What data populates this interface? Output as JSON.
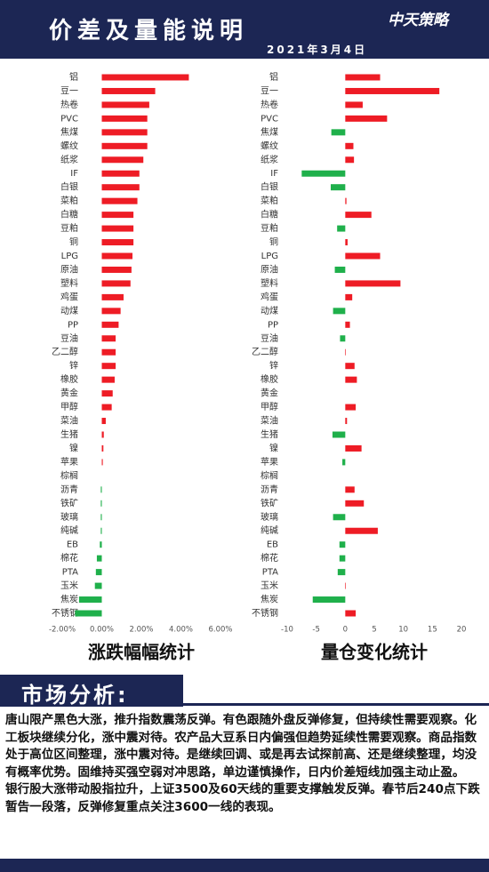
{
  "header": {
    "title": "价差及量能说明",
    "logo": "中天策略",
    "date": "2021年3月4日"
  },
  "chart_data": [
    {
      "type": "bar",
      "orientation": "horizontal",
      "caption": "涨跌幅幅统计",
      "categories": [
        "铝",
        "豆一",
        "热卷",
        "PVC",
        "焦煤",
        "螺纹",
        "纸浆",
        "IF",
        "白银",
        "菜粕",
        "白糖",
        "豆粕",
        "铜",
        "LPG",
        "原油",
        "塑料",
        "鸡蛋",
        "动煤",
        "PP",
        "豆油",
        "乙二醇",
        "锌",
        "橡胶",
        "黄金",
        "甲醇",
        "菜油",
        "生猪",
        "镍",
        "苹果",
        "棕榈",
        "沥青",
        "铁矿",
        "玻璃",
        "纯碱",
        "EB",
        "棉花",
        "PTA",
        "玉米",
        "焦炭",
        "不锈钢"
      ],
      "values": [
        4.4,
        2.7,
        2.4,
        2.3,
        2.3,
        2.3,
        2.1,
        1.9,
        1.9,
        1.8,
        1.6,
        1.6,
        1.6,
        1.55,
        1.5,
        1.45,
        1.1,
        0.95,
        0.85,
        0.7,
        0.7,
        0.7,
        0.65,
        0.55,
        0.5,
        0.2,
        0.1,
        0.08,
        0.05,
        0,
        -0.05,
        -0.05,
        -0.05,
        -0.05,
        -0.1,
        -0.25,
        -0.3,
        -0.35,
        -1.15,
        -1.35
      ],
      "positive_color": "#ee1c25",
      "negative_color": "#1fb04b",
      "xlim": [
        -2,
        6
      ],
      "xticks": [
        {
          "value": -2,
          "label": "-2.00%"
        },
        {
          "value": 0,
          "label": "0.00%"
        },
        {
          "value": 2,
          "label": "2.00%"
        },
        {
          "value": 4,
          "label": "4.00%"
        },
        {
          "value": 6,
          "label": "6.00%"
        }
      ]
    },
    {
      "type": "bar",
      "orientation": "horizontal",
      "caption": "量仓变化统计",
      "categories": [
        "铝",
        "豆一",
        "热卷",
        "PVC",
        "焦煤",
        "螺纹",
        "纸浆",
        "IF",
        "白银",
        "菜粕",
        "白糖",
        "豆粕",
        "铜",
        "LPG",
        "原油",
        "塑料",
        "鸡蛋",
        "动煤",
        "PP",
        "豆油",
        "乙二醇",
        "锌",
        "橡胶",
        "黄金",
        "甲醇",
        "菜油",
        "生猪",
        "镍",
        "苹果",
        "棕榈",
        "沥青",
        "铁矿",
        "玻璃",
        "纯碱",
        "EB",
        "棉花",
        "PTA",
        "玉米",
        "焦炭",
        "不锈钢"
      ],
      "values": [
        6,
        16.2,
        3,
        7.2,
        -2.4,
        1.4,
        1.5,
        -7.5,
        -2.5,
        0.2,
        4.5,
        -1.4,
        0.4,
        6,
        -1.8,
        9.5,
        1.2,
        -2.1,
        0.8,
        -0.9,
        0.1,
        1.6,
        2,
        0,
        1.8,
        0.3,
        -2.2,
        2.8,
        -0.5,
        0,
        1.6,
        3.2,
        -2.1,
        5.6,
        -1,
        -1,
        -1.3,
        0.1,
        -5.6,
        1.8
      ],
      "positive_color": "#ee1c25",
      "negative_color": "#1fb04b",
      "xlim": [
        -10,
        20
      ],
      "xticks": [
        -10,
        -5,
        0,
        5,
        10,
        15,
        20
      ]
    }
  ],
  "analysis": {
    "heading": "市场分析:",
    "paragraphs": [
      "唐山限产黑色大涨，推升指数震荡反弹。有色跟随外盘反弹修复，但持续性需要观察。化工板块继续分化，涨中震对待。农产品大豆系日内偏强但趋势延续性需要观察。商品指数处于高位区间整理，涨中震对待。是继续回调、或是再去试探前高、还是继续整理，均没有概率优势。固维持买强空弱对冲思路，单边谨慎操作，日内价差短线加强主动止盈。",
      "银行股大涨带动股指拉升，上证3500及60天线的重要支撑触发反弹。春节后240点下跌暂告一段落，反弹修复重点关注3600一线的表现。"
    ]
  }
}
